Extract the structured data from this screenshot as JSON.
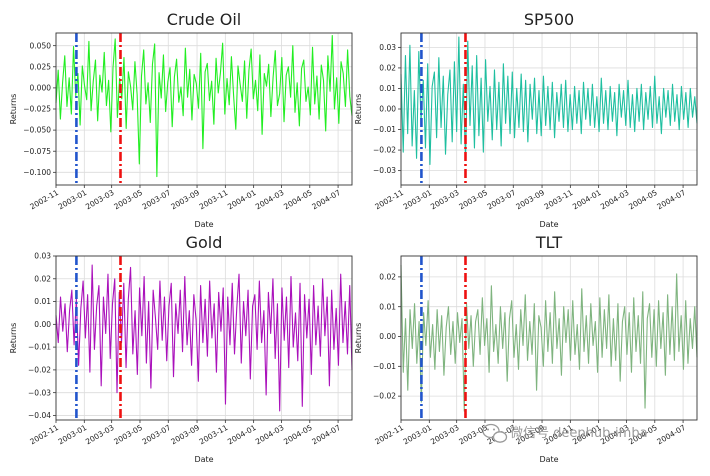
{
  "chart_data": [
    {
      "type": "line",
      "title": "Crude Oil",
      "xlabel": "Date",
      "ylabel": "Returns",
      "color": "#22ee22",
      "ylim": [
        -0.115,
        0.065
      ],
      "yticks": [
        0.05,
        0.025,
        0.0,
        -0.025,
        -0.05,
        -0.075,
        -0.1
      ],
      "ytick_labels": [
        "0.050",
        "0.025",
        "0.000",
        "−0.025",
        "−0.050",
        "−0.075",
        "−0.100"
      ],
      "xlim": [
        "2002-11-01",
        "2004-07-31"
      ],
      "xticks": [
        "2002-11",
        "2003-01",
        "2003-03",
        "2003-05",
        "2003-07",
        "2003-09",
        "2003-11",
        "2004-01",
        "2004-03",
        "2004-05",
        "2004-07"
      ],
      "vlines": [
        {
          "date": "2002-12-15",
          "color": "#2255cc",
          "style": "dashdot"
        },
        {
          "date": "2003-03-20",
          "color": "#ee1111",
          "style": "dashdot"
        }
      ],
      "grid": true,
      "series_values": [
        -0.018,
        0.021,
        -0.037,
        0.006,
        0.038,
        -0.022,
        0.012,
        -0.031,
        0.049,
        -0.009,
        0.017,
        -0.044,
        0.026,
        0.003,
        -0.014,
        0.055,
        -0.027,
        0.008,
        0.033,
        -0.039,
        0.015,
        -0.005,
        0.042,
        -0.021,
        0.009,
        -0.052,
        0.024,
        0.058,
        -0.035,
        0.011,
        -0.013,
        0.036,
        -0.048,
        0.019,
        0.002,
        -0.026,
        0.031,
        -0.008,
        -0.09,
        0.014,
        0.045,
        -0.019,
        0.006,
        -0.041,
        0.028,
        0.052,
        -0.105,
        0.018,
        -0.012,
        0.039,
        -0.028,
        0.007,
        0.024,
        -0.046,
        0.013,
        0.034,
        -0.017,
        0.001,
        -0.033,
        0.047,
        -0.011,
        0.022,
        -0.038,
        0.016,
        0.005,
        -0.024,
        0.041,
        -0.072,
        0.019,
        0.029,
        -0.015,
        0.008,
        -0.043,
        0.035,
        -0.006,
        0.018,
        0.053,
        -0.031,
        0.011,
        -0.02,
        0.037,
        -0.009,
        -0.049,
        0.026,
        0.004,
        -0.016,
        0.032,
        -0.036,
        0.021,
        0.046,
        -0.013,
        0.009,
        -0.027,
        0.039,
        -0.055,
        0.017,
        0.002,
        0.028,
        -0.034,
        0.012,
        0.044,
        -0.021,
        -0.007,
        0.036,
        -0.04,
        0.015,
        0.025,
        -0.011,
        0.05,
        -0.029,
        0.006,
        -0.045,
        0.023,
        0.033,
        -0.016,
        0.001,
        -0.032,
        0.048,
        -0.019,
        0.014,
        -0.037,
        0.027,
        0.009,
        -0.051,
        0.038,
        -0.004,
        0.062,
        -0.025,
        0.012,
        -0.042,
        0.031,
        0.017,
        -0.022,
        0.045,
        -0.01,
        -0.033
      ]
    },
    {
      "type": "line",
      "title": "SP500",
      "xlabel": "Date",
      "ylabel": "Returns",
      "color": "#1fbfa0",
      "ylim": [
        -0.037,
        0.037
      ],
      "yticks": [
        0.03,
        0.02,
        0.01,
        0.0,
        -0.01,
        -0.02,
        -0.03
      ],
      "ytick_labels": [
        "0.03",
        "0.02",
        "0.01",
        "0.00",
        "−0.01",
        "−0.02",
        "−0.03"
      ],
      "xlim": [
        "2002-11-01",
        "2004-07-31"
      ],
      "xticks": [
        "2002-11",
        "2003-01",
        "2003-03",
        "2003-05",
        "2003-07",
        "2003-09",
        "2003-11",
        "2004-01",
        "2004-03",
        "2004-05",
        "2004-07"
      ],
      "vlines": [
        {
          "date": "2002-12-15",
          "color": "#2255cc",
          "style": "dashdot"
        },
        {
          "date": "2003-03-20",
          "color": "#ee1111",
          "style": "dashdot"
        }
      ],
      "grid": true,
      "series_values": [
        0.017,
        -0.021,
        0.026,
        -0.012,
        0.031,
        -0.018,
        0.009,
        -0.024,
        0.028,
        -0.006,
        0.014,
        -0.019,
        0.022,
        -0.027,
        0.011,
        0.018,
        -0.014,
        0.025,
        -0.009,
        0.016,
        -0.022,
        0.007,
        0.019,
        -0.016,
        0.023,
        -0.011,
        0.035,
        -0.017,
        0.012,
        -0.025,
        0.033,
        -0.008,
        0.021,
        -0.019,
        0.026,
        -0.013,
        0.015,
        -0.021,
        0.024,
        -0.006,
        0.011,
        -0.015,
        0.019,
        -0.01,
        0.013,
        -0.018,
        0.022,
        -0.007,
        0.016,
        -0.012,
        0.018,
        -0.014,
        0.01,
        -0.009,
        0.017,
        -0.011,
        0.014,
        -0.016,
        0.012,
        -0.005,
        0.015,
        -0.012,
        0.009,
        -0.013,
        0.016,
        -0.008,
        0.011,
        -0.01,
        0.013,
        -0.014,
        0.008,
        -0.006,
        0.012,
        -0.009,
        0.014,
        -0.011,
        0.007,
        -0.01,
        0.011,
        -0.007,
        0.009,
        -0.012,
        0.013,
        -0.005,
        0.01,
        -0.008,
        0.012,
        -0.009,
        0.006,
        -0.011,
        0.015,
        -0.007,
        0.009,
        -0.01,
        0.011,
        -0.006,
        0.008,
        -0.013,
        0.012,
        -0.004,
        0.009,
        -0.008,
        0.014,
        -0.009,
        0.007,
        -0.011,
        0.01,
        -0.006,
        0.012,
        -0.01,
        0.008,
        -0.005,
        0.011,
        -0.009,
        0.016,
        -0.007,
        0.006,
        -0.012,
        0.01,
        -0.004,
        0.009,
        -0.008,
        0.012,
        -0.006,
        0.007,
        -0.01,
        0.011,
        -0.005,
        0.008,
        -0.009,
        0.01,
        -0.004,
        0.006,
        -0.007
      ]
    },
    {
      "type": "line",
      "title": "Gold",
      "xlabel": "Date",
      "ylabel": "Returns",
      "color": "#aa11bb",
      "ylim": [
        -0.042,
        0.03
      ],
      "yticks": [
        0.03,
        0.02,
        0.01,
        0.0,
        -0.01,
        -0.02,
        -0.03,
        -0.04
      ],
      "ytick_labels": [
        "0.03",
        "0.02",
        "0.01",
        "0.00",
        "−0.01",
        "−0.02",
        "−0.03",
        "−0.04"
      ],
      "xlim": [
        "2002-11-01",
        "2004-07-31"
      ],
      "xticks": [
        "2002-11",
        "2003-01",
        "2003-03",
        "2003-05",
        "2003-07",
        "2003-09",
        "2003-11",
        "2004-01",
        "2004-03",
        "2004-05",
        "2004-07"
      ],
      "vlines": [
        {
          "date": "2002-12-15",
          "color": "#2255cc",
          "style": "dashdot"
        },
        {
          "date": "2003-03-20",
          "color": "#ee1111",
          "style": "dashdot"
        }
      ],
      "grid": true,
      "series_values": [
        0.004,
        -0.008,
        0.012,
        -0.003,
        0.009,
        -0.012,
        0.006,
        0.015,
        -0.009,
        0.011,
        -0.018,
        0.007,
        0.019,
        -0.006,
        0.013,
        -0.021,
        0.026,
        -0.011,
        0.008,
        0.017,
        -0.027,
        0.012,
        -0.004,
        0.022,
        -0.015,
        0.009,
        0.02,
        -0.03,
        0.014,
        -0.008,
        0.018,
        -0.019,
        0.011,
        0.025,
        -0.013,
        0.006,
        -0.022,
        0.016,
        -0.005,
        0.021,
        -0.017,
        0.01,
        -0.028,
        0.015,
        0.003,
        -0.011,
        0.019,
        -0.007,
        0.012,
        -0.016,
        0.008,
        0.018,
        -0.023,
        0.009,
        -0.004,
        0.015,
        -0.012,
        0.021,
        -0.009,
        0.006,
        -0.018,
        0.013,
        0.002,
        -0.025,
        0.017,
        -0.008,
        0.011,
        -0.014,
        0.019,
        -0.006,
        0.009,
        -0.021,
        0.014,
        -0.003,
        0.016,
        -0.035,
        0.012,
        -0.009,
        0.018,
        -0.013,
        0.007,
        0.022,
        -0.017,
        0.01,
        -0.005,
        0.015,
        -0.024,
        0.008,
        0.013,
        -0.011,
        0.019,
        -0.008,
        0.006,
        -0.031,
        0.014,
        -0.004,
        0.02,
        -0.015,
        0.009,
        -0.038,
        0.016,
        -0.007,
        0.012,
        -0.019,
        0.021,
        -0.01,
        0.005,
        -0.016,
        0.018,
        -0.036,
        0.013,
        -0.006,
        0.011,
        -0.022,
        0.017,
        -0.009,
        0.008,
        -0.014,
        0.02,
        -0.005,
        0.012,
        -0.027,
        0.015,
        -0.011,
        0.007,
        -0.018,
        0.022,
        -0.008,
        0.01,
        -0.013,
        0.017,
        -0.02
      ]
    },
    {
      "type": "line",
      "title": "TLT",
      "xlabel": "Date",
      "ylabel": "Returns",
      "color": "#7fb47f",
      "ylim": [
        -0.028,
        0.027
      ],
      "yticks": [
        0.02,
        0.01,
        0.0,
        -0.01,
        -0.02
      ],
      "ytick_labels": [
        "0.02",
        "0.01",
        "0.00",
        "−0.01",
        "−0.02"
      ],
      "xlim": [
        "2002-11-01",
        "2004-07-31"
      ],
      "xticks": [
        "2002-11",
        "2003-01",
        "2003-03",
        "2003-05",
        "2003-07",
        "2003-09",
        "2003-11",
        "2004-01",
        "2004-03",
        "2004-05",
        "2004-07"
      ],
      "vlines": [
        {
          "date": "2002-12-15",
          "color": "#2255cc",
          "style": "dashdot"
        },
        {
          "date": "2003-03-20",
          "color": "#ee1111",
          "style": "dashdot"
        }
      ],
      "grid": true,
      "series_values": [
        0.024,
        -0.012,
        0.006,
        -0.018,
        0.009,
        -0.004,
        0.011,
        -0.009,
        0.005,
        -0.022,
        0.008,
        -0.003,
        0.012,
        -0.007,
        0.004,
        -0.011,
        0.009,
        -0.005,
        0.007,
        -0.013,
        0.003,
        0.01,
        -0.006,
        0.005,
        -0.009,
        0.008,
        -0.002,
        0.006,
        -0.025,
        0.011,
        -0.004,
        0.007,
        -0.01,
        0.005,
        0.009,
        -0.006,
        0.013,
        -0.003,
        0.006,
        -0.012,
        0.017,
        -0.005,
        0.004,
        -0.009,
        0.01,
        -0.004,
        0.008,
        -0.015,
        0.006,
        0.012,
        -0.007,
        0.004,
        -0.011,
        0.009,
        -0.003,
        0.014,
        -0.008,
        0.005,
        -0.006,
        0.011,
        -0.018,
        0.007,
        0.003,
        -0.01,
        0.012,
        -0.005,
        0.008,
        -0.009,
        0.015,
        -0.004,
        0.006,
        -0.013,
        0.01,
        -0.002,
        0.009,
        -0.008,
        0.012,
        -0.006,
        0.004,
        -0.011,
        0.016,
        -0.005,
        0.007,
        -0.009,
        0.011,
        -0.003,
        0.005,
        -0.012,
        0.013,
        -0.007,
        0.009,
        -0.004,
        0.014,
        -0.01,
        0.006,
        -0.008,
        0.011,
        -0.015,
        0.005,
        0.01,
        -0.006,
        0.008,
        -0.012,
        0.013,
        -0.005,
        0.007,
        -0.009,
        0.015,
        -0.024,
        0.006,
        0.011,
        -0.007,
        0.009,
        -0.01,
        0.012,
        -0.004,
        0.008,
        -0.013,
        0.014,
        -0.006,
        0.01,
        -0.008,
        0.021,
        -0.005,
        0.007,
        -0.011,
        0.012,
        -0.009,
        0.006,
        -0.004,
        0.01,
        -0.007
      ]
    }
  ],
  "watermark": {
    "text": "微信号 deephub-imba",
    "icon": "wechat-icon"
  }
}
